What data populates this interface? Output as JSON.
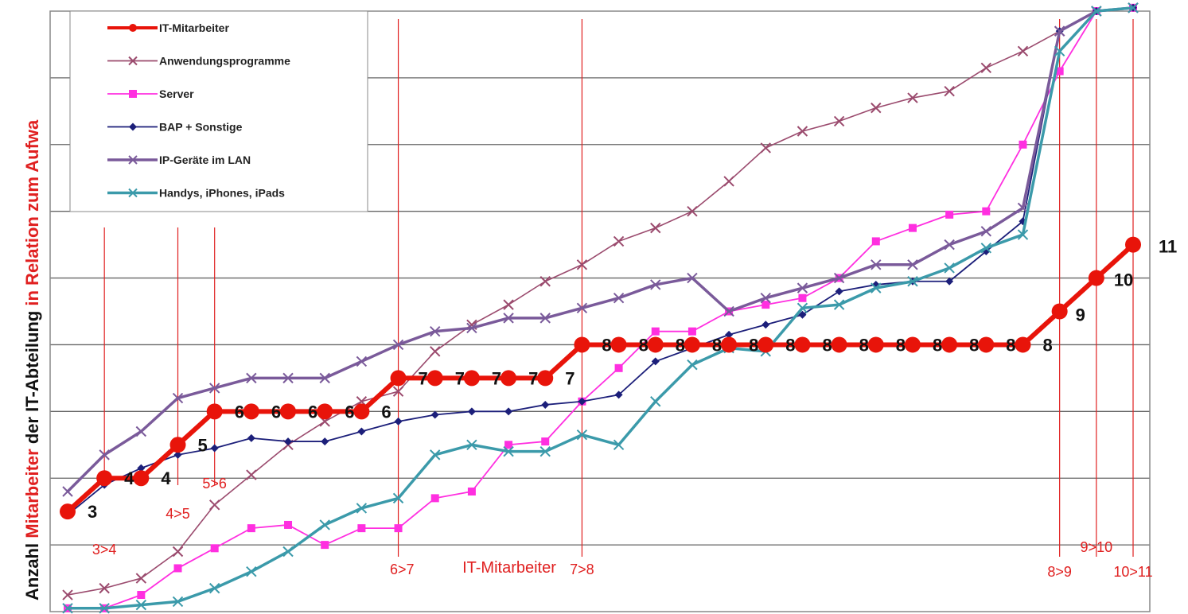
{
  "chart_data": {
    "type": "line",
    "ylabel": {
      "part1": "Anzahl ",
      "part2": "Mitarbeiter",
      "part3": " der IT-Abteilung ",
      "part4": "in Relation zum Aufwa",
      "colors": [
        "#111111",
        "#e02020",
        "#111111",
        "#e02020"
      ]
    },
    "xlabel": "IT-Mitarbeiter",
    "ylim": [
      0,
      9
    ],
    "grid": true,
    "legend_position": "top-left",
    "x": [
      1,
      2,
      3,
      4,
      5,
      6,
      7,
      8,
      9,
      10,
      11,
      12,
      13,
      14,
      15,
      16,
      17,
      18,
      19,
      20,
      21,
      22,
      23,
      24,
      25,
      26,
      27,
      28,
      29,
      30
    ],
    "series": [
      {
        "name": "IT-Mitarbeiter",
        "color": "#e8140a",
        "marker": "circle",
        "values": [
          1.5,
          2,
          2,
          2.5,
          3,
          3,
          3,
          3,
          3,
          3.5,
          3.5,
          3.5,
          3.5,
          3.5,
          4,
          4,
          4,
          4,
          4,
          4,
          4,
          4,
          4,
          4,
          4,
          4,
          4,
          4.5,
          5,
          5.5
        ]
      },
      {
        "name": "Anwendungsprogramme",
        "color": "#9b4b6e",
        "marker": "x",
        "values": [
          0.25,
          0.35,
          0.5,
          0.9,
          1.6,
          2.05,
          2.5,
          2.85,
          3.15,
          3.3,
          3.9,
          4.3,
          4.6,
          4.95,
          5.2,
          5.55,
          5.75,
          6,
          6.45,
          6.95,
          7.2,
          7.35,
          7.55,
          7.7,
          7.8,
          8.15,
          8.4,
          8.7,
          9,
          9.05
        ]
      },
      {
        "name": "Server",
        "color": "#ff2fe0",
        "marker": "square",
        "values": [
          0.05,
          0.05,
          0.25,
          0.65,
          0.95,
          1.25,
          1.3,
          1,
          1.25,
          1.25,
          1.7,
          1.8,
          2.5,
          2.55,
          3.15,
          3.65,
          4.2,
          4.2,
          4.5,
          4.6,
          4.7,
          5,
          5.55,
          5.75,
          5.95,
          6,
          7,
          8.1,
          9,
          9.05
        ]
      },
      {
        "name": "BAP + Sonstige",
        "color": "#1c1f7a",
        "marker": "diamond",
        "values": [
          1.45,
          1.9,
          2.15,
          2.35,
          2.45,
          2.6,
          2.55,
          2.55,
          2.7,
          2.85,
          2.95,
          3,
          3,
          3.1,
          3.15,
          3.25,
          3.75,
          3.95,
          4.15,
          4.3,
          4.45,
          4.8,
          4.9,
          4.95,
          4.95,
          5.4,
          5.85,
          8.7,
          9,
          9.05
        ]
      },
      {
        "name": "IP-Geräte im LAN",
        "color": "#7a5a9a",
        "marker": "x",
        "values": [
          1.8,
          2.35,
          2.7,
          3.2,
          3.35,
          3.5,
          3.5,
          3.5,
          3.75,
          4,
          4.2,
          4.25,
          4.4,
          4.4,
          4.55,
          4.7,
          4.9,
          5,
          4.5,
          4.7,
          4.85,
          5,
          5.2,
          5.2,
          5.5,
          5.7,
          6.05,
          8.7,
          9,
          9.05
        ]
      },
      {
        "name": "Handys, iPhones, iPads",
        "color": "#3b9aaa",
        "marker": "x",
        "values": [
          0.05,
          0.05,
          0.1,
          0.15,
          0.35,
          0.6,
          0.9,
          1.3,
          1.55,
          1.7,
          2.35,
          2.5,
          2.4,
          2.4,
          2.65,
          2.5,
          3.15,
          3.7,
          3.95,
          3.9,
          4.55,
          4.6,
          4.85,
          4.95,
          5.15,
          5.45,
          5.65,
          8.4,
          9,
          9.05
        ]
      }
    ],
    "point_labels": [
      {
        "x": 1,
        "text": "3"
      },
      {
        "x": 2,
        "text": "4"
      },
      {
        "x": 3,
        "text": "4"
      },
      {
        "x": 4,
        "text": "5"
      },
      {
        "x": 5,
        "text": "6"
      },
      {
        "x": 6,
        "text": "6"
      },
      {
        "x": 7,
        "text": "6"
      },
      {
        "x": 8,
        "text": "6"
      },
      {
        "x": 9,
        "text": "6"
      },
      {
        "x": 10,
        "text": "7"
      },
      {
        "x": 11,
        "text": "7"
      },
      {
        "x": 12,
        "text": "7"
      },
      {
        "x": 13,
        "text": "7"
      },
      {
        "x": 14,
        "text": "7"
      },
      {
        "x": 15,
        "text": "8"
      },
      {
        "x": 16,
        "text": "8"
      },
      {
        "x": 17,
        "text": "8"
      },
      {
        "x": 18,
        "text": "8"
      },
      {
        "x": 19,
        "text": "8"
      },
      {
        "x": 20,
        "text": "8"
      },
      {
        "x": 21,
        "text": "8"
      },
      {
        "x": 22,
        "text": "8"
      },
      {
        "x": 23,
        "text": "8"
      },
      {
        "x": 24,
        "text": "8"
      },
      {
        "x": 25,
        "text": "8"
      },
      {
        "x": 26,
        "text": "8"
      },
      {
        "x": 27,
        "text": "8"
      },
      {
        "x": 28,
        "text": "9"
      },
      {
        "x": 29,
        "text": "10"
      },
      {
        "x": 30,
        "text": "11"
      }
    ],
    "transitions": [
      {
        "x": 2,
        "label": "3>4"
      },
      {
        "x": 4,
        "label": "4>5"
      },
      {
        "x": 5,
        "label": "5>6"
      },
      {
        "x": 10,
        "label": "6>7"
      },
      {
        "x": 15,
        "label": "7>8"
      },
      {
        "x": 28,
        "label": "8>9"
      },
      {
        "x": 29,
        "label": "9>10"
      },
      {
        "x": 30,
        "label": "10>11"
      }
    ]
  }
}
